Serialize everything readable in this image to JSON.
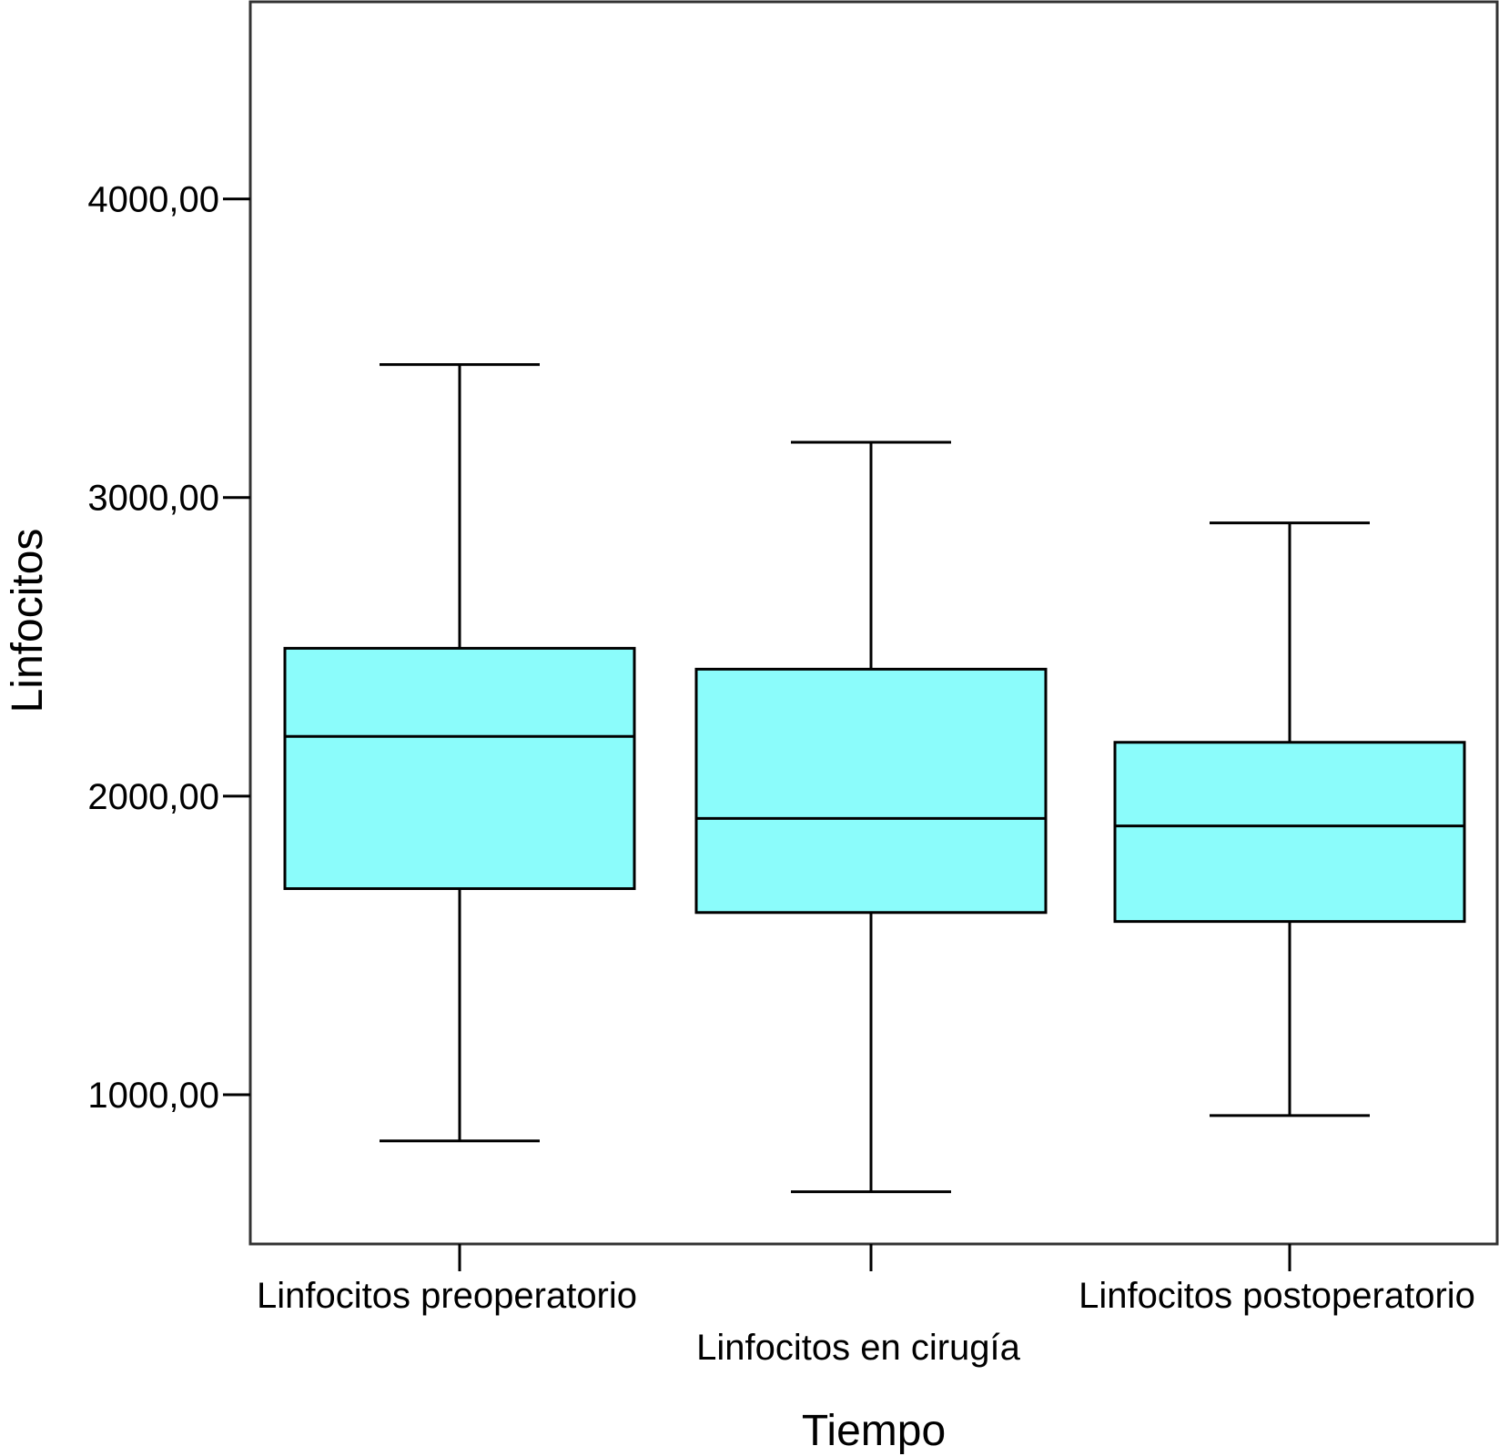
{
  "chart_data": {
    "type": "boxplot",
    "xlabel": "Tiempo",
    "ylabel": "Linfocitos",
    "categories": [
      "Linfocitos preoperatorio",
      "Linfocitos en cirugía",
      "Linfocitos postoperatorio"
    ],
    "ylim": [
      500,
      4660
    ],
    "yticks": [
      1000,
      2000,
      3000,
      4000
    ],
    "ytick_labels": [
      "1000,00",
      "2000,00",
      "3000,00",
      "4000,00"
    ],
    "grid": false,
    "box_color": "#8bfcfb",
    "boxes": [
      {
        "category": "Linfocitos preoperatorio",
        "min": 845,
        "q1": 1690,
        "median": 2200,
        "q3": 2495,
        "max": 3445
      },
      {
        "category": "Linfocitos en cirugía",
        "min": 675,
        "q1": 1610,
        "median": 1925,
        "q3": 2425,
        "max": 3185
      },
      {
        "category": "Linfocitos postoperatorio",
        "min": 930,
        "q1": 1580,
        "median": 1900,
        "q3": 2180,
        "max": 2915
      }
    ]
  }
}
